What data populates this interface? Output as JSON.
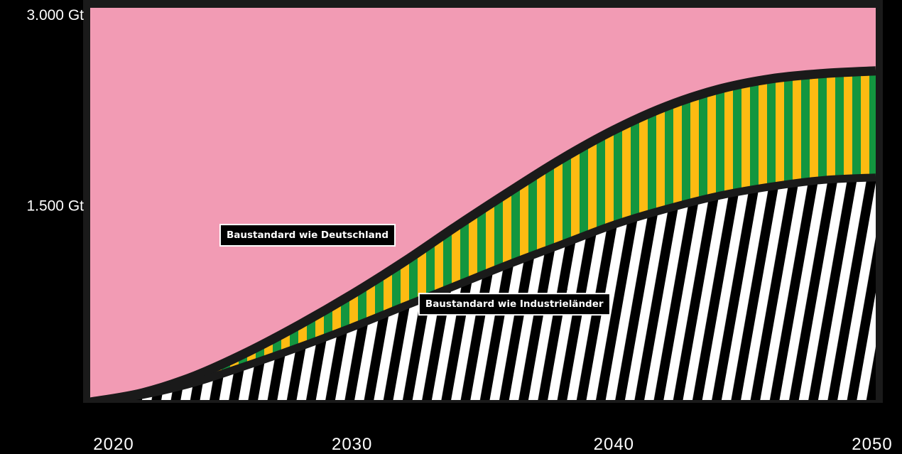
{
  "chart_data": {
    "type": "area",
    "x_range": [
      2020,
      2050
    ],
    "ylim": [
      0,
      3000
    ],
    "y_unit": "Gt",
    "x_ticks": [
      {
        "value": 2020,
        "label": "2020"
      },
      {
        "value": 2030,
        "label": "2030"
      },
      {
        "value": 2040,
        "label": "2040"
      },
      {
        "value": 2050,
        "label": "2050"
      }
    ],
    "y_ticks": [
      {
        "value": 3000,
        "label": "3.000 Gt"
      },
      {
        "value": 1500,
        "label": "1.500 Gt"
      }
    ],
    "series": [
      {
        "fill": "hatched-white-black",
        "x": [
          2020,
          2022,
          2024,
          2026,
          2028,
          2030,
          2032,
          2034,
          2036,
          2038,
          2040,
          2042,
          2044,
          2046,
          2048,
          2050
        ],
        "y": [
          0,
          55,
          150,
          280,
          420,
          570,
          730,
          890,
          1050,
          1200,
          1350,
          1470,
          1570,
          1640,
          1690,
          1710
        ]
      },
      {
        "fill": "striped-green-yellow",
        "x": [
          2020,
          2022,
          2024,
          2026,
          2028,
          2030,
          2032,
          2034,
          2036,
          2038,
          2040,
          2042,
          2044,
          2046,
          2048,
          2050
        ],
        "y": [
          0,
          70,
          200,
          380,
          590,
          820,
          1070,
          1340,
          1600,
          1850,
          2070,
          2250,
          2380,
          2460,
          2500,
          2520
        ]
      }
    ],
    "annotations": [
      {
        "text": "Baustandard wie Deutschland",
        "x": 2028.3,
        "y": 1270
      },
      {
        "text": "Baustandard wie Industrieländer",
        "x": 2036.2,
        "y": 745
      }
    ],
    "background": "#f29bb4",
    "colors": {
      "green": "#13963f",
      "yellow": "#fdbb12",
      "white": "#ffffff",
      "black": "#000000",
      "outline": "#1a1a1a"
    }
  }
}
